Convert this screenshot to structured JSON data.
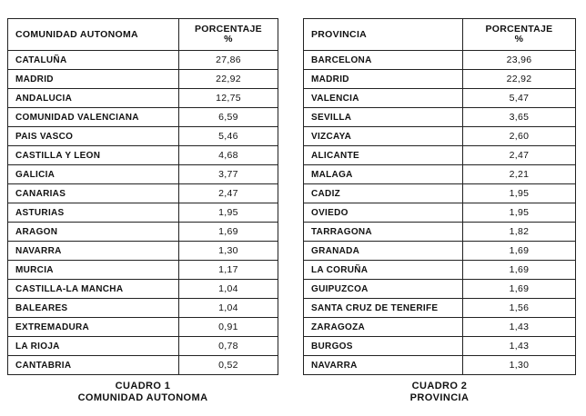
{
  "tables": [
    {
      "header": {
        "label": "COMUNIDAD AUTONOMA",
        "value_title": "PORCENTAJE",
        "value_unit": "%"
      },
      "rows": [
        [
          "CATALUÑA",
          "27,86"
        ],
        [
          "MADRID",
          "22,92"
        ],
        [
          "ANDALUCIA",
          "12,75"
        ],
        [
          "COMUNIDAD VALENCIANA",
          "6,59"
        ],
        [
          "PAIS VASCO",
          "5,46"
        ],
        [
          "CASTILLA Y LEON",
          "4,68"
        ],
        [
          "GALICIA",
          "3,77"
        ],
        [
          "CANARIAS",
          "2,47"
        ],
        [
          "ASTURIAS",
          "1,95"
        ],
        [
          "ARAGON",
          "1,69"
        ],
        [
          "NAVARRA",
          "1,30"
        ],
        [
          "MURCIA",
          "1,17"
        ],
        [
          "CASTILLA-LA MANCHA",
          "1,04"
        ],
        [
          "BALEARES",
          "1,04"
        ],
        [
          "EXTREMADURA",
          "0,91"
        ],
        [
          "LA RIOJA",
          "0,78"
        ],
        [
          "CANTABRIA",
          "0,52"
        ]
      ],
      "caption": {
        "number": "CUADRO 1",
        "title": "COMUNIDAD AUTONOMA"
      }
    },
    {
      "header": {
        "label": "PROVINCIA",
        "value_title": "PORCENTAJE",
        "value_unit": "%"
      },
      "rows": [
        [
          "BARCELONA",
          "23,96"
        ],
        [
          "MADRID",
          "22,92"
        ],
        [
          "VALENCIA",
          "5,47"
        ],
        [
          "SEVILLA",
          "3,65"
        ],
        [
          "VIZCAYA",
          "2,60"
        ],
        [
          "ALICANTE",
          "2,47"
        ],
        [
          "MALAGA",
          "2,21"
        ],
        [
          "CADIZ",
          "1,95"
        ],
        [
          "OVIEDO",
          "1,95"
        ],
        [
          "TARRAGONA",
          "1,82"
        ],
        [
          "GRANADA",
          "1,69"
        ],
        [
          "LA CORUÑA",
          "1,69"
        ],
        [
          "GUIPUZCOA",
          "1,69"
        ],
        [
          "SANTA CRUZ DE TENERIFE",
          "1,56"
        ],
        [
          "ZARAGOZA",
          "1,43"
        ],
        [
          "BURGOS",
          "1,43"
        ],
        [
          "NAVARRA",
          "1,30"
        ]
      ],
      "caption": {
        "number": "CUADRO 2",
        "title": "PROVINCIA"
      }
    }
  ]
}
